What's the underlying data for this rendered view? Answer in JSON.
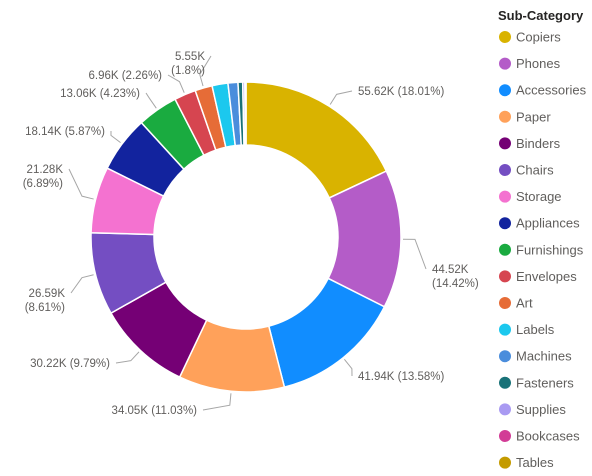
{
  "chart_data": {
    "type": "pie",
    "donut": true,
    "legend_title": "Sub-Category",
    "legend_position": "right",
    "series": [
      {
        "name": "Copiers",
        "value": 55.62,
        "percent": 18.01,
        "color": "#D9B300",
        "label": [
          "55.62K (18.01%)"
        ]
      },
      {
        "name": "Phones",
        "value": 44.52,
        "percent": 14.42,
        "color": "#B45CC8",
        "label": [
          "44.52K",
          "(14.42%)"
        ]
      },
      {
        "name": "Accessories",
        "value": 41.94,
        "percent": 13.58,
        "color": "#118DFF",
        "label": [
          "41.94K (13.58%)"
        ]
      },
      {
        "name": "Paper",
        "value": 34.05,
        "percent": 11.03,
        "color": "#FFA15A",
        "label": [
          "34.05K (11.03%)"
        ]
      },
      {
        "name": "Binders",
        "value": 30.22,
        "percent": 9.79,
        "color": "#750075",
        "label": [
          "30.22K (9.79%)"
        ]
      },
      {
        "name": "Chairs",
        "value": 26.59,
        "percent": 8.61,
        "color": "#744EC2",
        "label": [
          "26.59K",
          "(8.61%)"
        ]
      },
      {
        "name": "Storage",
        "value": 21.28,
        "percent": 6.89,
        "color": "#F472D0",
        "label": [
          "21.28K",
          "(6.89%)"
        ]
      },
      {
        "name": "Appliances",
        "value": 18.14,
        "percent": 5.87,
        "color": "#12239E",
        "label": [
          "18.14K (5.87%)"
        ]
      },
      {
        "name": "Furnishings",
        "value": 13.06,
        "percent": 4.23,
        "color": "#1AAB40",
        "label": [
          "13.06K (4.23%)"
        ]
      },
      {
        "name": "Envelopes",
        "value": 6.96,
        "percent": 2.26,
        "color": "#D64550",
        "label": [
          "6.96K (2.26%)"
        ]
      },
      {
        "name": "Art",
        "value": 5.55,
        "percent": 1.8,
        "color": "#E66C37",
        "label": [
          "5.55K",
          "(1.8%)"
        ]
      },
      {
        "name": "Labels",
        "value": 5.1,
        "percent": 1.65,
        "color": "#1CC8EE",
        "label": []
      },
      {
        "name": "Machines",
        "value": 3.2,
        "percent": 1.04,
        "color": "#4A8DDC",
        "label": []
      },
      {
        "name": "Fasteners",
        "value": 1.5,
        "percent": 0.49,
        "color": "#197278",
        "label": []
      },
      {
        "name": "Supplies",
        "value": 0.7,
        "percent": 0.23,
        "color": "#A99AF2",
        "label": []
      },
      {
        "name": "Bookcases",
        "value": 0.25,
        "percent": 0.08,
        "color": "#D23C96",
        "label": []
      },
      {
        "name": "Tables",
        "value": 0.1,
        "percent": 0.03,
        "color": "#C49B00",
        "label": []
      }
    ]
  }
}
